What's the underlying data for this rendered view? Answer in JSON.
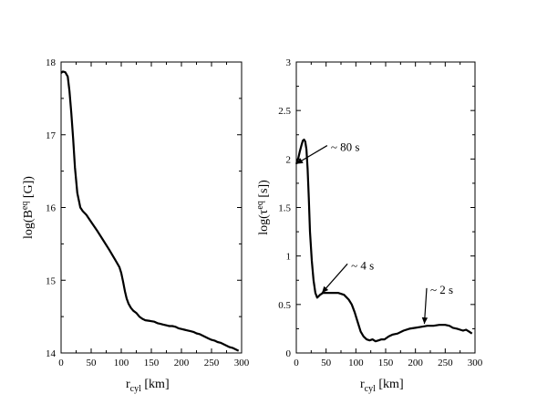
{
  "chart_data": [
    {
      "type": "line",
      "xlabel": "r",
      "xlabel_sub": "cyl",
      "xlabel_unit": "[km]",
      "ylabel": "log(B",
      "ylabel_sup": "eq",
      "ylabel_unit": "[G])",
      "xlim": [
        0,
        300
      ],
      "ylim": [
        14,
        18
      ],
      "xticks": [
        "0",
        "50",
        "100",
        "150",
        "200",
        "250",
        "300"
      ],
      "yticks": [
        "14",
        "15",
        "16",
        "17",
        "18"
      ],
      "grid": false,
      "series": [
        {
          "x": [
            0,
            3,
            7,
            11,
            14,
            17,
            20,
            23,
            27,
            32,
            36,
            42,
            50,
            60,
            70,
            80,
            90,
            97,
            100,
            103,
            106,
            109,
            112,
            116,
            120,
            125,
            130,
            135,
            140,
            148,
            155,
            160,
            165,
            170,
            175,
            180,
            185,
            190,
            195,
            200,
            205,
            210,
            215,
            220,
            225,
            230,
            235,
            240,
            245,
            250,
            255,
            260,
            265,
            270,
            275,
            280,
            285,
            290,
            295
          ],
          "y": [
            17.85,
            17.87,
            17.86,
            17.8,
            17.6,
            17.3,
            16.95,
            16.55,
            16.2,
            16.0,
            15.95,
            15.9,
            15.8,
            15.68,
            15.55,
            15.42,
            15.28,
            15.18,
            15.1,
            14.98,
            14.85,
            14.75,
            14.68,
            14.62,
            14.58,
            14.55,
            14.5,
            14.47,
            14.45,
            14.44,
            14.43,
            14.41,
            14.4,
            14.39,
            14.38,
            14.37,
            14.37,
            14.36,
            14.34,
            14.33,
            14.32,
            14.31,
            14.3,
            14.29,
            14.27,
            14.26,
            14.24,
            14.22,
            14.2,
            14.18,
            14.17,
            14.15,
            14.14,
            14.12,
            14.1,
            14.08,
            14.07,
            14.05,
            14.03
          ]
        }
      ]
    },
    {
      "type": "line",
      "xlabel": "r",
      "xlabel_sub": "cyl",
      "xlabel_unit": "[km]",
      "ylabel": "log(τ",
      "ylabel_sup": "eq",
      "ylabel_unit": "[s])",
      "xlim": [
        0,
        300
      ],
      "ylim": [
        0,
        3
      ],
      "xticks": [
        "0",
        "50",
        "100",
        "150",
        "200",
        "250",
        "300"
      ],
      "yticks": [
        "0",
        "0.5",
        "1",
        "1.5",
        "2",
        "2.5",
        "3"
      ],
      "grid": false,
      "series": [
        {
          "x": [
            0,
            3,
            6,
            9,
            11,
            13,
            15,
            17,
            19,
            21,
            23,
            26,
            29,
            32,
            35,
            40,
            45,
            50,
            60,
            70,
            80,
            88,
            93,
            98,
            103,
            108,
            113,
            118,
            123,
            128,
            133,
            138,
            143,
            148,
            155,
            162,
            170,
            180,
            190,
            200,
            210,
            220,
            230,
            240,
            250,
            257,
            263,
            270,
            275,
            280,
            285,
            290,
            295
          ],
          "y": [
            1.95,
            2.0,
            2.08,
            2.15,
            2.19,
            2.2,
            2.18,
            2.1,
            1.9,
            1.6,
            1.25,
            0.95,
            0.75,
            0.62,
            0.57,
            0.6,
            0.62,
            0.62,
            0.62,
            0.62,
            0.6,
            0.55,
            0.5,
            0.42,
            0.32,
            0.22,
            0.17,
            0.14,
            0.13,
            0.14,
            0.12,
            0.13,
            0.14,
            0.14,
            0.17,
            0.19,
            0.2,
            0.23,
            0.25,
            0.26,
            0.27,
            0.28,
            0.28,
            0.29,
            0.29,
            0.28,
            0.26,
            0.25,
            0.24,
            0.23,
            0.24,
            0.22,
            0.2
          ]
        }
      ],
      "annotations": [
        {
          "text": "~ 80 s",
          "point": [
            0,
            1.95
          ],
          "text_at": [
            58,
            2.12
          ]
        },
        {
          "text": "~ 4 s",
          "point": [
            43,
            0.62
          ],
          "text_at": [
            92,
            0.9
          ]
        },
        {
          "text": "~ 2 s",
          "point": [
            215,
            0.3
          ],
          "text_at": [
            225,
            0.65
          ]
        }
      ]
    }
  ]
}
